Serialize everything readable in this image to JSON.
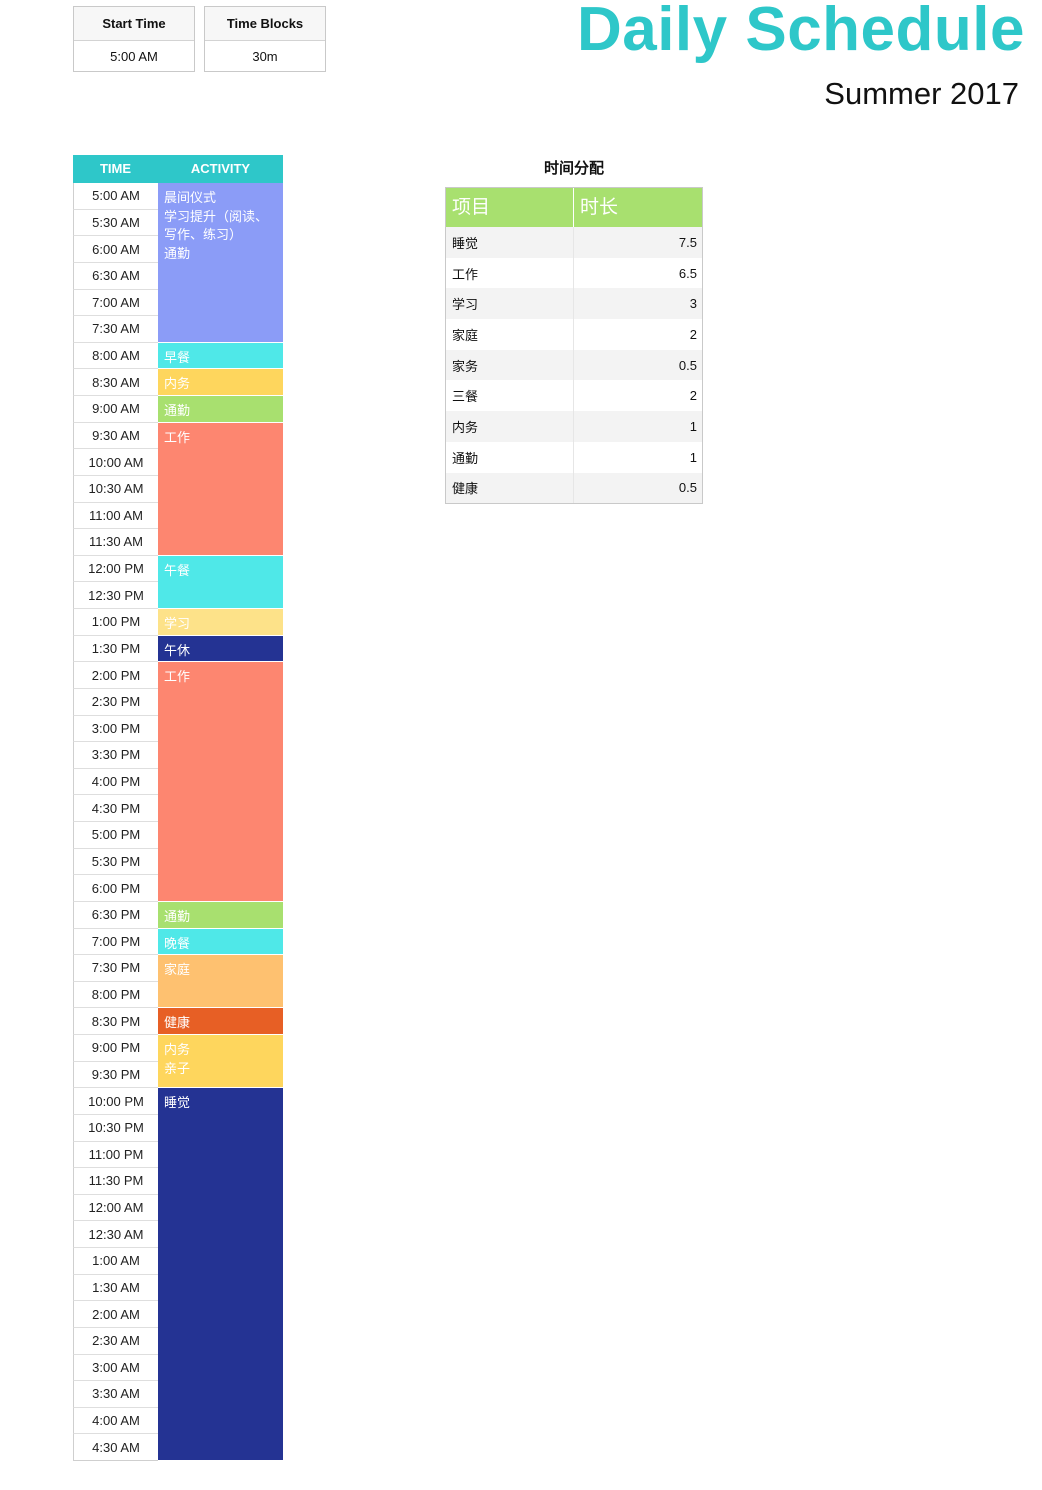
{
  "settings": {
    "start_time_label": "Start Time",
    "start_time_value": "5:00 AM",
    "time_blocks_label": "Time Blocks",
    "time_blocks_value": "30m"
  },
  "header": {
    "title": "Daily Schedule",
    "subtitle": "Summer 2017"
  },
  "schedule": {
    "time_header": "TIME",
    "activity_header": "ACTIVITY",
    "times": [
      "5:00 AM",
      "5:30 AM",
      "6:00 AM",
      "6:30 AM",
      "7:00 AM",
      "7:30 AM",
      "8:00 AM",
      "8:30 AM",
      "9:00 AM",
      "9:30 AM",
      "10:00 AM",
      "10:30 AM",
      "11:00 AM",
      "11:30 AM",
      "12:00 PM",
      "12:30 PM",
      "1:00 PM",
      "1:30 PM",
      "2:00 PM",
      "2:30 PM",
      "3:00 PM",
      "3:30 PM",
      "4:00 PM",
      "4:30 PM",
      "5:00 PM",
      "5:30 PM",
      "6:00 PM",
      "6:30 PM",
      "7:00 PM",
      "7:30 PM",
      "8:00 PM",
      "8:30 PM",
      "9:00 PM",
      "9:30 PM",
      "10:00 PM",
      "10:30 PM",
      "11:00 PM",
      "11:30 PM",
      "12:00 AM",
      "12:30 AM",
      "1:00 AM",
      "1:30 AM",
      "2:00 AM",
      "2:30 AM",
      "3:00 AM",
      "3:30 AM",
      "4:00 AM",
      "4:30 AM"
    ],
    "activities": [
      {
        "text": "晨间仪式\n学习提升（阅读、写作、练习）\n通勤",
        "slots": 6,
        "color": "#8b9cf7"
      },
      {
        "text": "早餐",
        "slots": 1,
        "color": "#4fe8e8"
      },
      {
        "text": "内务",
        "slots": 1,
        "color": "#fed65d"
      },
      {
        "text": "通勤",
        "slots": 1,
        "color": "#a8e06f"
      },
      {
        "text": "工作",
        "slots": 5,
        "color": "#fd8670"
      },
      {
        "text": "午餐",
        "slots": 2,
        "color": "#4fe8e8"
      },
      {
        "text": "学习",
        "slots": 1,
        "color": "#fde289"
      },
      {
        "text": "午休",
        "slots": 1,
        "color": "#243393"
      },
      {
        "text": "工作",
        "slots": 9,
        "color": "#fd8670"
      },
      {
        "text": "通勤",
        "slots": 1,
        "color": "#a8e06f"
      },
      {
        "text": "晚餐",
        "slots": 1,
        "color": "#4fe8e8"
      },
      {
        "text": "家庭",
        "slots": 2,
        "color": "#fec170"
      },
      {
        "text": "健康",
        "slots": 1,
        "color": "#e75f25"
      },
      {
        "text": "内务\n亲子",
        "slots": 2,
        "color": "#fed65d"
      },
      {
        "text": "睡觉",
        "slots": 14,
        "color": "#243393"
      }
    ]
  },
  "distribution": {
    "title": "时间分配",
    "col_item": "项目",
    "col_duration": "时长",
    "rows": [
      {
        "item": "睡觉",
        "hours": "7.5"
      },
      {
        "item": "工作",
        "hours": "6.5"
      },
      {
        "item": "学习",
        "hours": "3"
      },
      {
        "item": "家庭",
        "hours": "2"
      },
      {
        "item": "家务",
        "hours": "0.5"
      },
      {
        "item": "三餐",
        "hours": "2"
      },
      {
        "item": "内务",
        "hours": "1"
      },
      {
        "item": "通勤",
        "hours": "1"
      },
      {
        "item": "健康",
        "hours": "0.5"
      }
    ]
  }
}
